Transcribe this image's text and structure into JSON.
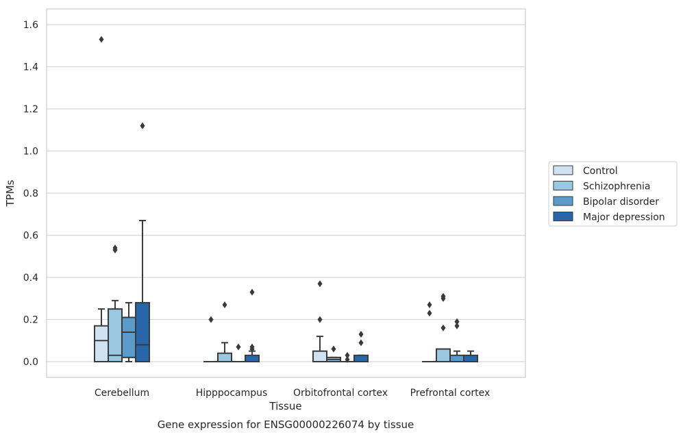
{
  "chart_data": {
    "type": "boxplot",
    "title": "",
    "caption": "Gene expression for ENSG00000226074 by tissue",
    "xlabel": "Tissue",
    "ylabel": "TPMs",
    "ylim": [
      -0.07,
      1.61
    ],
    "yticks": [
      0.0,
      0.2,
      0.4,
      0.6,
      0.8,
      1.0,
      1.2,
      1.4,
      1.6
    ],
    "ytick_labels": [
      "0.0",
      "0.2",
      "0.4",
      "0.6",
      "0.8",
      "1.0",
      "1.2",
      "1.4",
      "1.6"
    ],
    "grid": "horizontal",
    "legend_position": "right",
    "categories": [
      "Cerebellum",
      "Hipppocampus",
      "Orbitofrontal cortex",
      "Prefrontal cortex"
    ],
    "series": [
      {
        "name": "Control",
        "color": "#d0e1f2",
        "boxes": [
          {
            "whislo": 0.0,
            "q1": 0.0,
            "med": 0.1,
            "q3": 0.17,
            "whishi": 0.25,
            "fliers": [
              1.53
            ]
          },
          {
            "whislo": 0.0,
            "q1": 0.0,
            "med": 0.0,
            "q3": 0.0,
            "whishi": 0.0,
            "fliers": [
              0.2
            ]
          },
          {
            "whislo": 0.0,
            "q1": 0.0,
            "med": 0.0,
            "q3": 0.05,
            "whishi": 0.12,
            "fliers": [
              0.37,
              0.2
            ]
          },
          {
            "whislo": 0.0,
            "q1": 0.0,
            "med": 0.0,
            "q3": 0.0,
            "whishi": 0.0,
            "fliers": [
              0.27,
              0.23
            ]
          }
        ]
      },
      {
        "name": "Schizophrenia",
        "color": "#9ac8e0",
        "boxes": [
          {
            "whislo": 0.0,
            "q1": 0.0,
            "med": 0.03,
            "q3": 0.25,
            "whishi": 0.29,
            "fliers": [
              0.54,
              0.53
            ]
          },
          {
            "whislo": 0.0,
            "q1": 0.0,
            "med": 0.0,
            "q3": 0.04,
            "whishi": 0.09,
            "fliers": [
              0.27
            ]
          },
          {
            "whislo": 0.0,
            "q1": 0.0,
            "med": 0.01,
            "q3": 0.02,
            "whishi": 0.02,
            "fliers": [
              0.06
            ]
          },
          {
            "whislo": 0.0,
            "q1": 0.0,
            "med": 0.0,
            "q3": 0.06,
            "whishi": 0.06,
            "fliers": [
              0.31,
              0.3,
              0.16
            ]
          }
        ]
      },
      {
        "name": "Bipolar disorder",
        "color": "#5b9bc9",
        "boxes": [
          {
            "whislo": 0.0,
            "q1": 0.02,
            "med": 0.14,
            "q3": 0.21,
            "whishi": 0.28,
            "fliers": []
          },
          {
            "whislo": 0.0,
            "q1": 0.0,
            "med": 0.0,
            "q3": 0.0,
            "whishi": 0.0,
            "fliers": [
              0.07
            ]
          },
          {
            "whislo": 0.0,
            "q1": 0.0,
            "med": 0.0,
            "q3": 0.0,
            "whishi": 0.0,
            "fliers": [
              0.03,
              0.01
            ]
          },
          {
            "whislo": 0.0,
            "q1": 0.0,
            "med": 0.0,
            "q3": 0.03,
            "whishi": 0.05,
            "fliers": [
              0.19,
              0.17
            ]
          }
        ]
      },
      {
        "name": "Major depression",
        "color": "#2767a9",
        "boxes": [
          {
            "whislo": 0.0,
            "q1": 0.0,
            "med": 0.08,
            "q3": 0.28,
            "whishi": 0.67,
            "fliers": [
              1.12
            ]
          },
          {
            "whislo": 0.0,
            "q1": 0.0,
            "med": 0.0,
            "q3": 0.03,
            "whishi": 0.05,
            "fliers": [
              0.33,
              0.07,
              0.06
            ]
          },
          {
            "whislo": 0.0,
            "q1": 0.0,
            "med": 0.0,
            "q3": 0.03,
            "whishi": 0.03,
            "fliers": [
              0.13,
              0.09
            ]
          },
          {
            "whislo": 0.0,
            "q1": 0.0,
            "med": 0.0,
            "q3": 0.03,
            "whishi": 0.05,
            "fliers": []
          }
        ]
      }
    ]
  }
}
